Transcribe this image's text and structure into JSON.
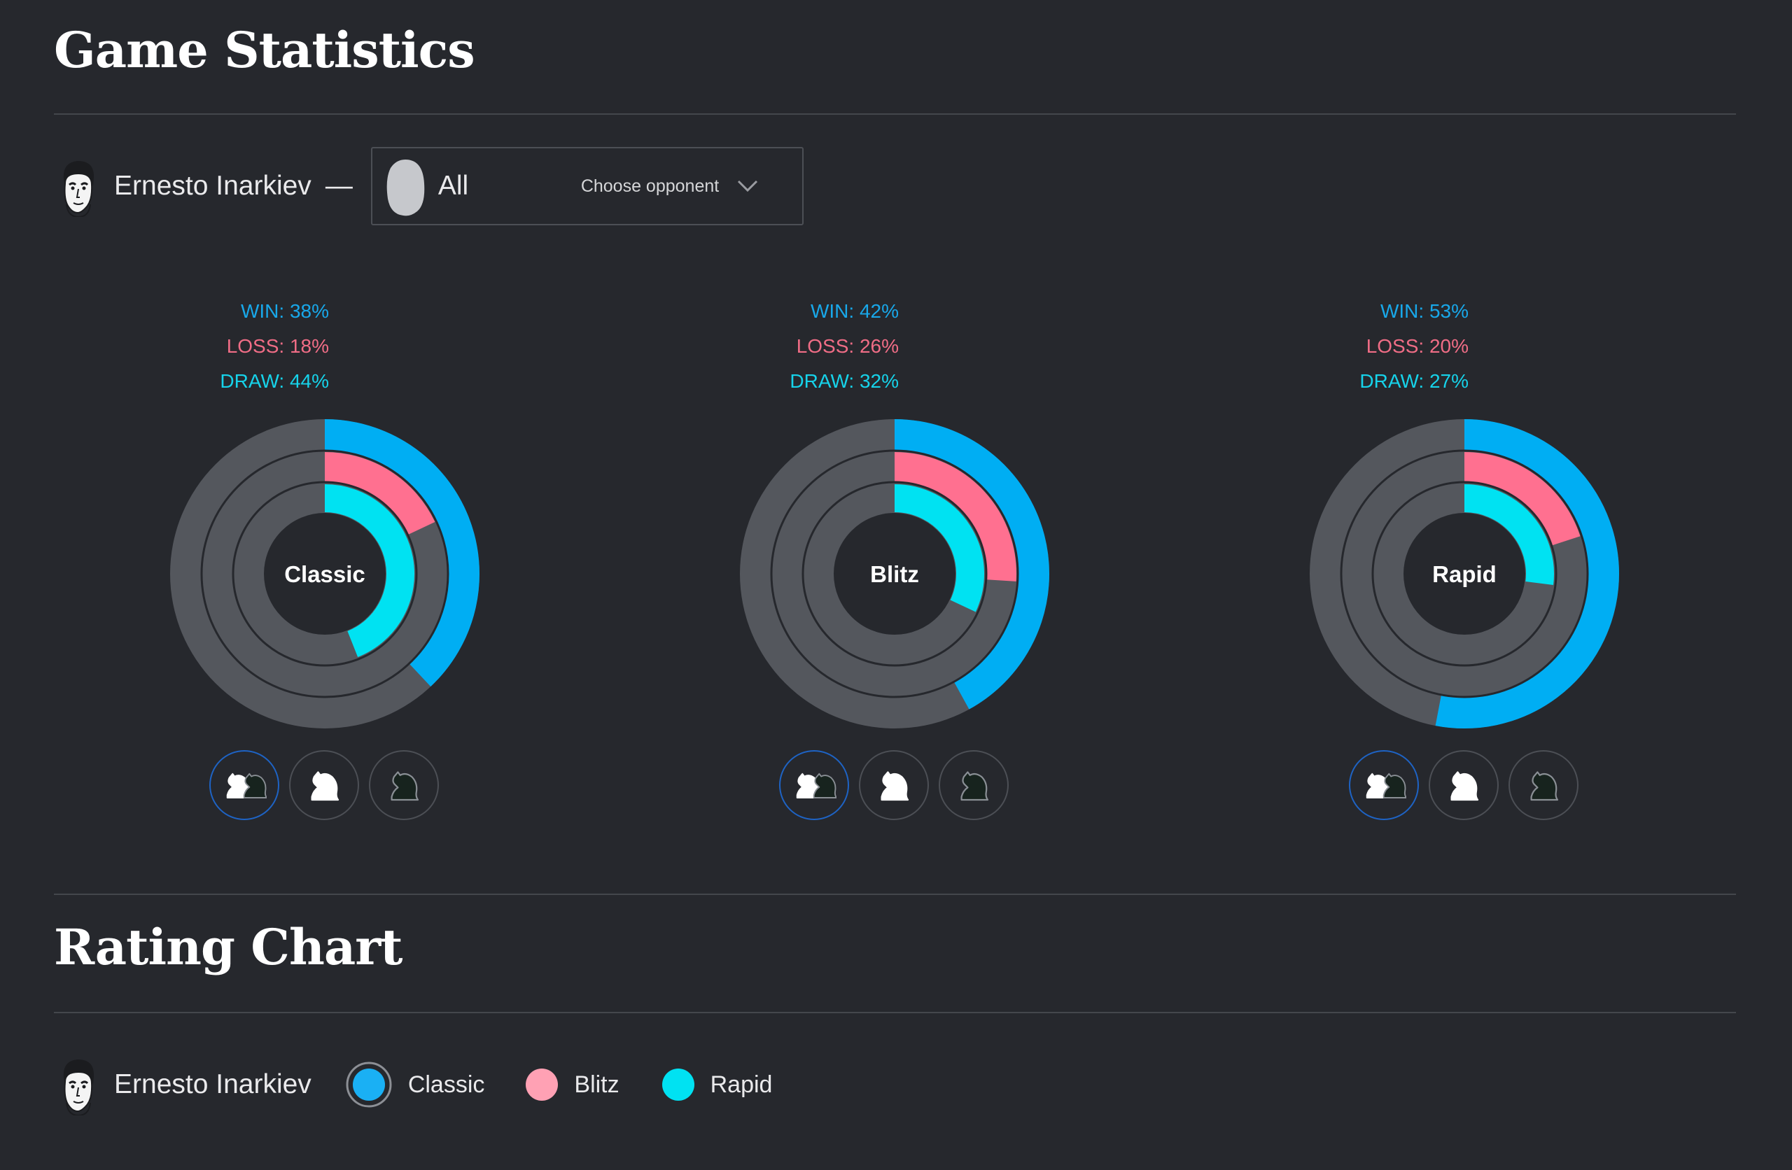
{
  "stats_section": {
    "title": "Game Statistics",
    "player": {
      "name": "Ernesto Inarkiev",
      "separator": "—"
    },
    "opponent": {
      "value": "All",
      "hint": "Choose opponent"
    }
  },
  "charts": [
    {
      "label": "Classic",
      "stats": {
        "win": "WIN: 38%",
        "loss": "LOSS: 18%",
        "draw": "DRAW: 44%"
      },
      "values": {
        "win": 38,
        "loss": 18,
        "draw": 44
      }
    },
    {
      "label": "Blitz",
      "stats": {
        "win": "WIN: 42%",
        "loss": "LOSS: 26%",
        "draw": "DRAW: 32%"
      },
      "values": {
        "win": 42,
        "loss": 26,
        "draw": 32
      }
    },
    {
      "label": "Rapid",
      "stats": {
        "win": "WIN: 53%",
        "loss": "LOSS: 20%",
        "draw": "DRAW: 27%"
      },
      "values": {
        "win": 53,
        "loss": 20,
        "draw": 27
      }
    }
  ],
  "colors": {
    "win": "#00aef3",
    "loss": "#ff7090",
    "draw": "#00e2f2",
    "track": "#54575d",
    "center": "#26282d"
  },
  "side_filters": [
    "both-sides-icon",
    "white-knight-icon",
    "black-knight-icon"
  ],
  "rating_section": {
    "title": "Rating Chart",
    "player": {
      "name": "Ernesto Inarkiev"
    },
    "legend": [
      {
        "label": "Classic",
        "color": "#1ab0f4"
      },
      {
        "label": "Blitz",
        "color": "#ffa1b4"
      },
      {
        "label": "Rapid",
        "color": "#00e2f2"
      }
    ]
  }
}
